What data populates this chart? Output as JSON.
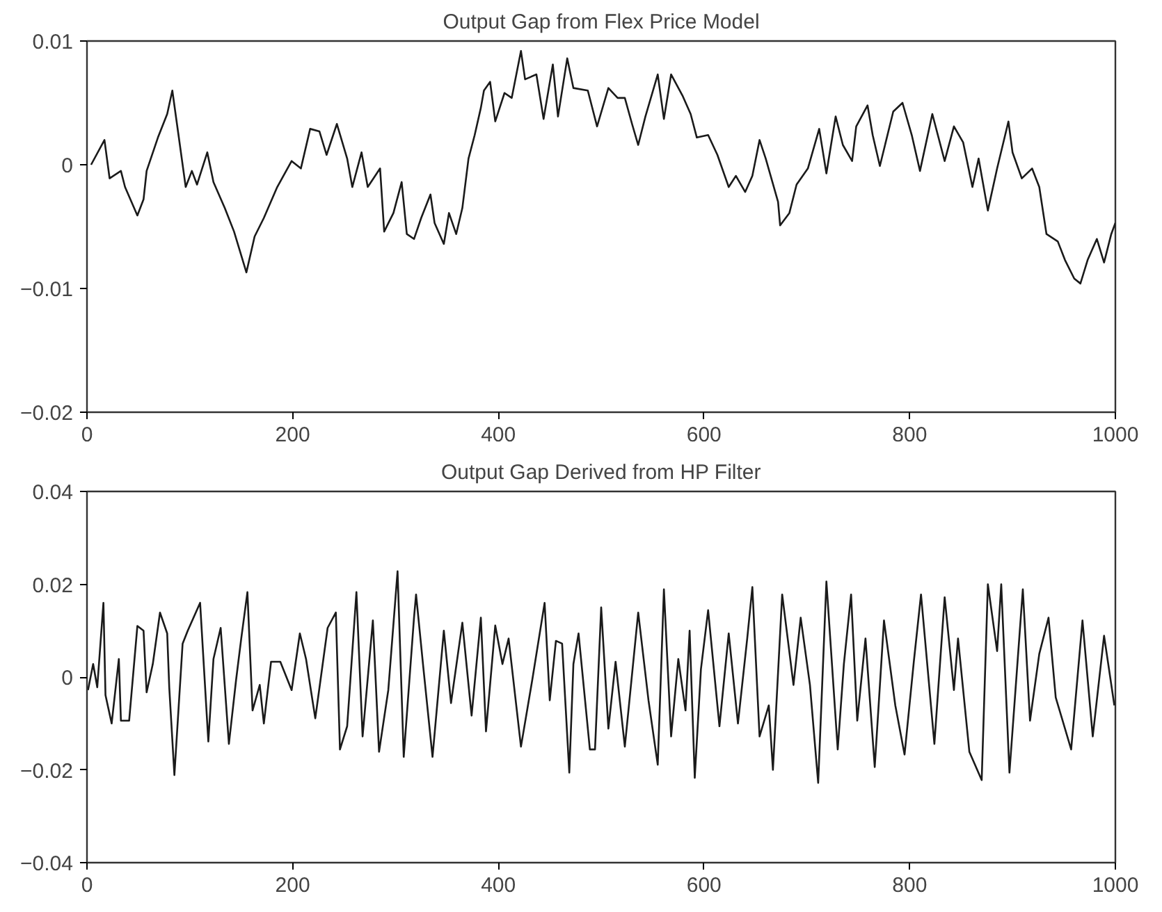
{
  "chart_data": [
    {
      "type": "line",
      "title": "Output Gap from Flex Price Model",
      "xlim": [
        0,
        1000
      ],
      "ylim": [
        -0.02,
        0.01
      ],
      "xticks": [
        0,
        200,
        400,
        600,
        800,
        1000
      ],
      "yticks": [
        {
          "value": -0.02,
          "label": "−0.02"
        },
        {
          "value": -0.01,
          "label": "−0.01"
        },
        0,
        0.01
      ],
      "grid": false,
      "series": [
        {
          "color": "#1a1a1a",
          "x": [
            4,
            17,
            22,
            33,
            37,
            49,
            55,
            58,
            69,
            78,
            83,
            89,
            96,
            102,
            107,
            117,
            123,
            134,
            143,
            155,
            163,
            172,
            185,
            199,
            208,
            217,
            226,
            233,
            243,
            253,
            258,
            267,
            273,
            285,
            289,
            298,
            306,
            311,
            318,
            325,
            334,
            338,
            347,
            352,
            359,
            365,
            371,
            377,
            383,
            386,
            392,
            397,
            406,
            413,
            422,
            426,
            437,
            444,
            453,
            458,
            467,
            473,
            487,
            496,
            507,
            516,
            523,
            530,
            536,
            543,
            555,
            561,
            568,
            579,
            587,
            593,
            604,
            613,
            624,
            631,
            640,
            647,
            654,
            660,
            672,
            674,
            683,
            690,
            701,
            712,
            719,
            728,
            735,
            744,
            748,
            759,
            764,
            771,
            784,
            793,
            802,
            810,
            822,
            834,
            843,
            852,
            861,
            867,
            876,
            885,
            896,
            900,
            909,
            919,
            926,
            933,
            944,
            951,
            960,
            966,
            973,
            982,
            989,
            996,
            1000
          ],
          "values": [
            0,
            0.002,
            -0.0011,
            -0.0005,
            -0.0018,
            -0.0041,
            -0.0028,
            -0.0005,
            0.0022,
            0.0041,
            0.006,
            0.0024,
            -0.0018,
            -0.0005,
            -0.0016,
            0.001,
            -0.0014,
            -0.0035,
            -0.0054,
            -0.0087,
            -0.0058,
            -0.0043,
            -0.0018,
            0.0003,
            -0.0003,
            0.0029,
            0.0027,
            0.0008,
            0.0033,
            0.0005,
            -0.0018,
            0.001,
            -0.0018,
            -0.0003,
            -0.0054,
            -0.0039,
            -0.0014,
            -0.0056,
            -0.006,
            -0.0043,
            -0.0024,
            -0.0047,
            -0.0064,
            -0.0039,
            -0.0056,
            -0.0035,
            0.0005,
            0.0024,
            0.0046,
            0.006,
            0.0067,
            0.0035,
            0.0058,
            0.0054,
            0.0092,
            0.0069,
            0.0073,
            0.0037,
            0.0081,
            0.0039,
            0.0086,
            0.0062,
            0.006,
            0.0031,
            0.0062,
            0.0054,
            0.0054,
            0.0033,
            0.0016,
            0.0039,
            0.0073,
            0.0037,
            0.0073,
            0.0056,
            0.0041,
            0.0022,
            0.0024,
            0.0008,
            -0.0018,
            -0.0009,
            -0.0022,
            -0.0009,
            0.002,
            0.0005,
            -0.003,
            -0.0049,
            -0.0039,
            -0.0016,
            -0.0003,
            0.0029,
            -0.0007,
            0.0039,
            0.0016,
            0.0003,
            0.0031,
            0.0048,
            0.0024,
            -0.0001,
            0.0043,
            0.005,
            0.0024,
            -0.0005,
            0.0041,
            0.0003,
            0.0031,
            0.0018,
            -0.0018,
            0.0005,
            -0.0037,
            -0.0003,
            0.0035,
            0.001,
            -0.0011,
            -0.0003,
            -0.0018,
            -0.0056,
            -0.0062,
            -0.0077,
            -0.0092,
            -0.0096,
            -0.0077,
            -0.006,
            -0.0079,
            -0.0056,
            -0.0047
          ]
        }
      ]
    },
    {
      "type": "line",
      "title": "Output Gap Derived from HP Filter",
      "xlim": [
        0,
        1000
      ],
      "ylim": [
        -0.04,
        0.04
      ],
      "xticks": [
        0,
        200,
        400,
        600,
        800,
        1000
      ],
      "yticks": [
        {
          "value": -0.04,
          "label": "−0.04"
        },
        {
          "value": -0.02,
          "label": "−0.02"
        },
        0,
        0.02,
        0.04
      ],
      "grid": false,
      "series": [
        {
          "color": "#1a1a1a",
          "x": [
            1,
            6,
            10,
            16,
            18,
            24,
            31,
            33,
            41,
            49,
            55,
            58,
            64,
            71,
            78,
            80,
            85,
            93,
            98,
            110,
            118,
            123,
            130,
            138,
            145,
            150,
            156,
            161,
            168,
            172,
            179,
            188,
            199,
            207,
            213,
            222,
            234,
            242,
            246,
            253,
            262,
            268,
            278,
            284,
            293,
            302,
            308,
            318,
            320,
            327,
            336,
            347,
            354,
            365,
            374,
            383,
            388,
            397,
            404,
            410,
            422,
            433,
            445,
            450,
            456,
            462,
            469,
            473,
            478,
            489,
            494,
            500,
            507,
            514,
            523,
            536,
            546,
            555,
            561,
            568,
            575,
            582,
            586,
            591,
            597,
            604,
            615,
            624,
            633,
            642,
            647,
            654,
            663,
            667,
            676,
            687,
            694,
            703,
            711,
            719,
            730,
            736,
            743,
            749,
            757,
            766,
            775,
            786,
            795,
            804,
            811,
            824,
            834,
            843,
            847,
            858,
            870,
            876,
            885,
            889,
            897,
            910,
            917,
            926,
            935,
            942,
            957,
            968,
            978,
            989,
            999
          ],
          "values": [
            -0.0028,
            0.0028,
            -0.0022,
            0.016,
            -0.0039,
            -0.01,
            0.0039,
            -0.0094,
            -0.0094,
            0.011,
            0.01,
            -0.0033,
            0.0028,
            0.0139,
            0.0094,
            -0.0022,
            -0.0211,
            0.0072,
            0.01,
            0.016,
            -0.0139,
            0.0039,
            0.0106,
            -0.0144,
            -0.0006,
            0.0083,
            0.0183,
            -0.0072,
            -0.0017,
            -0.01,
            0.0033,
            0.0033,
            -0.0028,
            0.0094,
            0.0039,
            -0.0089,
            0.0106,
            0.0139,
            -0.0156,
            -0.0106,
            0.0183,
            -0.0128,
            0.0122,
            -0.0161,
            -0.0028,
            0.0228,
            -0.0172,
            0.0128,
            0.0178,
            0.0022,
            -0.0172,
            0.01,
            -0.0056,
            0.0117,
            -0.0083,
            0.0128,
            -0.0117,
            0.0111,
            0.0028,
            0.0083,
            -0.015,
            -0.0006,
            0.016,
            -0.005,
            0.0078,
            0.0072,
            -0.0206,
            0.0028,
            0.0094,
            -0.0156,
            -0.0156,
            0.015,
            -0.0111,
            0.0033,
            -0.015,
            0.0139,
            -0.005,
            -0.0189,
            0.0189,
            -0.0128,
            0.0039,
            -0.0072,
            0.01,
            -0.0217,
            0.0017,
            0.0144,
            -0.0106,
            0.0094,
            -0.01,
            0.0083,
            0.0194,
            -0.0128,
            -0.0061,
            -0.02,
            0.0178,
            -0.0017,
            0.0128,
            -0.0017,
            -0.0228,
            0.0206,
            -0.0156,
            0.0028,
            0.0178,
            -0.0094,
            0.0083,
            -0.0194,
            0.0122,
            -0.0061,
            -0.0167,
            0.0033,
            0.0178,
            -0.0144,
            0.0172,
            -0.0028,
            0.0083,
            -0.0161,
            -0.0222,
            0.02,
            0.0056,
            0.02,
            -0.0206,
            0.0189,
            -0.0094,
            0.005,
            0.0128,
            -0.0044,
            -0.0156,
            0.0122,
            -0.0128,
            0.0089,
            -0.0061
          ]
        }
      ]
    }
  ]
}
